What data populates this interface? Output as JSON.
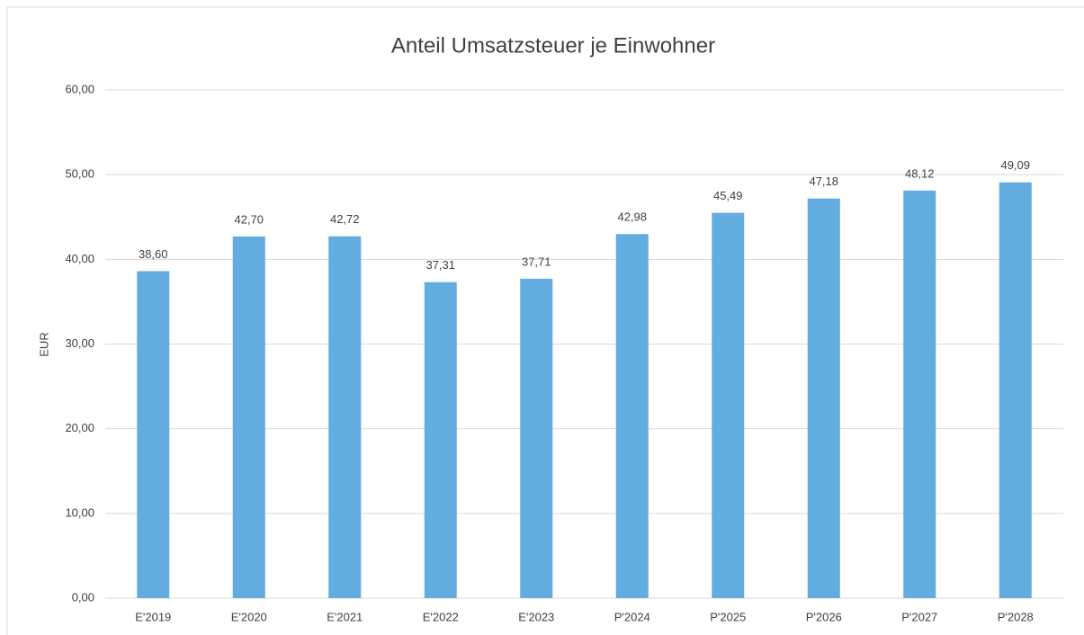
{
  "chart_data": {
    "type": "bar",
    "title": "Anteil Umsatzsteuer je Einwohner",
    "y_label": "EUR",
    "categories": [
      "E'2019",
      "E'2020",
      "E'2021",
      "E'2022",
      "E'2023",
      "P'2024",
      "P'2025",
      "P'2026",
      "P'2027",
      "P'2028"
    ],
    "values": [
      38.6,
      42.7,
      42.72,
      37.31,
      37.71,
      42.98,
      45.49,
      47.18,
      48.12,
      49.09
    ],
    "value_labels": [
      "38,60",
      "42,70",
      "42,72",
      "37,31",
      "37,71",
      "42,98",
      "45,49",
      "47,18",
      "48,12",
      "49,09"
    ],
    "color": "#63acdf",
    "ylim": [
      0,
      60
    ],
    "yticks": [
      {
        "value": 0,
        "label": "0,00"
      },
      {
        "value": 10,
        "label": "10,00"
      },
      {
        "value": 20,
        "label": "20,00"
      },
      {
        "value": 30,
        "label": "30,00"
      },
      {
        "value": 40,
        "label": "40,00"
      },
      {
        "value": 50,
        "label": "50,00"
      },
      {
        "value": 60,
        "label": "60,00"
      }
    ],
    "grid": true
  }
}
